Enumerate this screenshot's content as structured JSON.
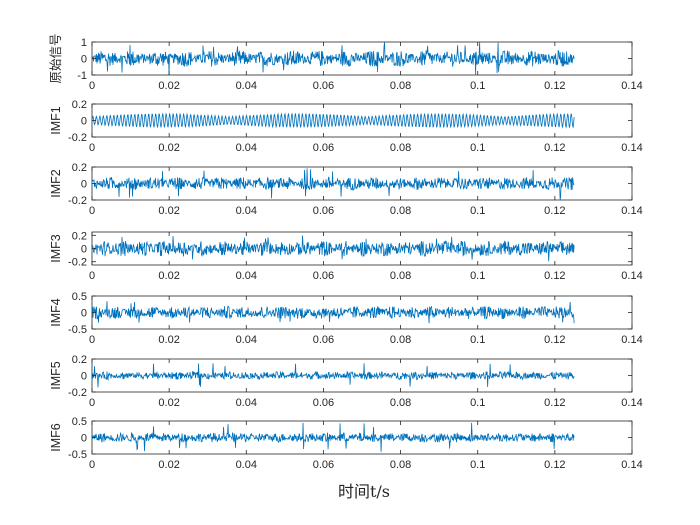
{
  "chart_data": {
    "type": "line",
    "xlabel": "时间t/s",
    "xlim": [
      0,
      0.14
    ],
    "x_ticks": [
      "0",
      "0.02",
      "0.04",
      "0.06",
      "0.08",
      "0.1",
      "0.12",
      "0.14"
    ],
    "signal_end_time": 0.125,
    "line_color": "#0072BD",
    "axes_color": "#262626",
    "subplots": [
      {
        "ylabel": "原始信号",
        "ylim": [
          -1,
          1
        ],
        "y_ticks": [
          "1",
          "0",
          "-1"
        ],
        "y_tick_values": [
          1,
          0,
          -1
        ],
        "approx_amplitude": 0.5,
        "peak_amplitude": 1.0
      },
      {
        "ylabel": "IMF1",
        "ylim": [
          -0.2,
          0.2
        ],
        "y_ticks": [
          "0.2",
          "0",
          "-0.2"
        ],
        "y_tick_values": [
          0.2,
          0,
          -0.2
        ],
        "approx_amplitude": 0.06,
        "peak_amplitude": 0.15
      },
      {
        "ylabel": "IMF2",
        "ylim": [
          -0.2,
          0.2
        ],
        "y_ticks": [
          "0.2",
          "0",
          "-0.2"
        ],
        "y_tick_values": [
          0.2,
          0,
          -0.2
        ],
        "approx_amplitude": 0.08,
        "peak_amplitude": 0.2
      },
      {
        "ylabel": "IMF3",
        "ylim": [
          -0.25,
          0.25
        ],
        "y_ticks": [
          "0.2",
          "0",
          "-0.2"
        ],
        "y_tick_values": [
          0.2,
          0,
          -0.2
        ],
        "approx_amplitude": 0.12,
        "peak_amplitude": 0.2
      },
      {
        "ylabel": "IMF4",
        "ylim": [
          -0.5,
          0.5
        ],
        "y_ticks": [
          "0.5",
          "0",
          "-0.5"
        ],
        "y_tick_values": [
          0.5,
          0,
          -0.5
        ],
        "approx_amplitude": 0.2,
        "peak_amplitude": 0.35
      },
      {
        "ylabel": "IMF5",
        "ylim": [
          -0.2,
          0.2
        ],
        "y_ticks": [
          "0.2",
          "0",
          "-0.2"
        ],
        "y_tick_values": [
          0.2,
          0,
          -0.2
        ],
        "approx_amplitude": 0.05,
        "peak_amplitude": 0.15
      },
      {
        "ylabel": "IMF6",
        "ylim": [
          -0.5,
          0.5
        ],
        "y_ticks": [
          "0.5",
          "0",
          "-0.5"
        ],
        "y_tick_values": [
          0.5,
          0,
          -0.5
        ],
        "approx_amplitude": 0.15,
        "peak_amplitude": 0.45
      }
    ]
  }
}
